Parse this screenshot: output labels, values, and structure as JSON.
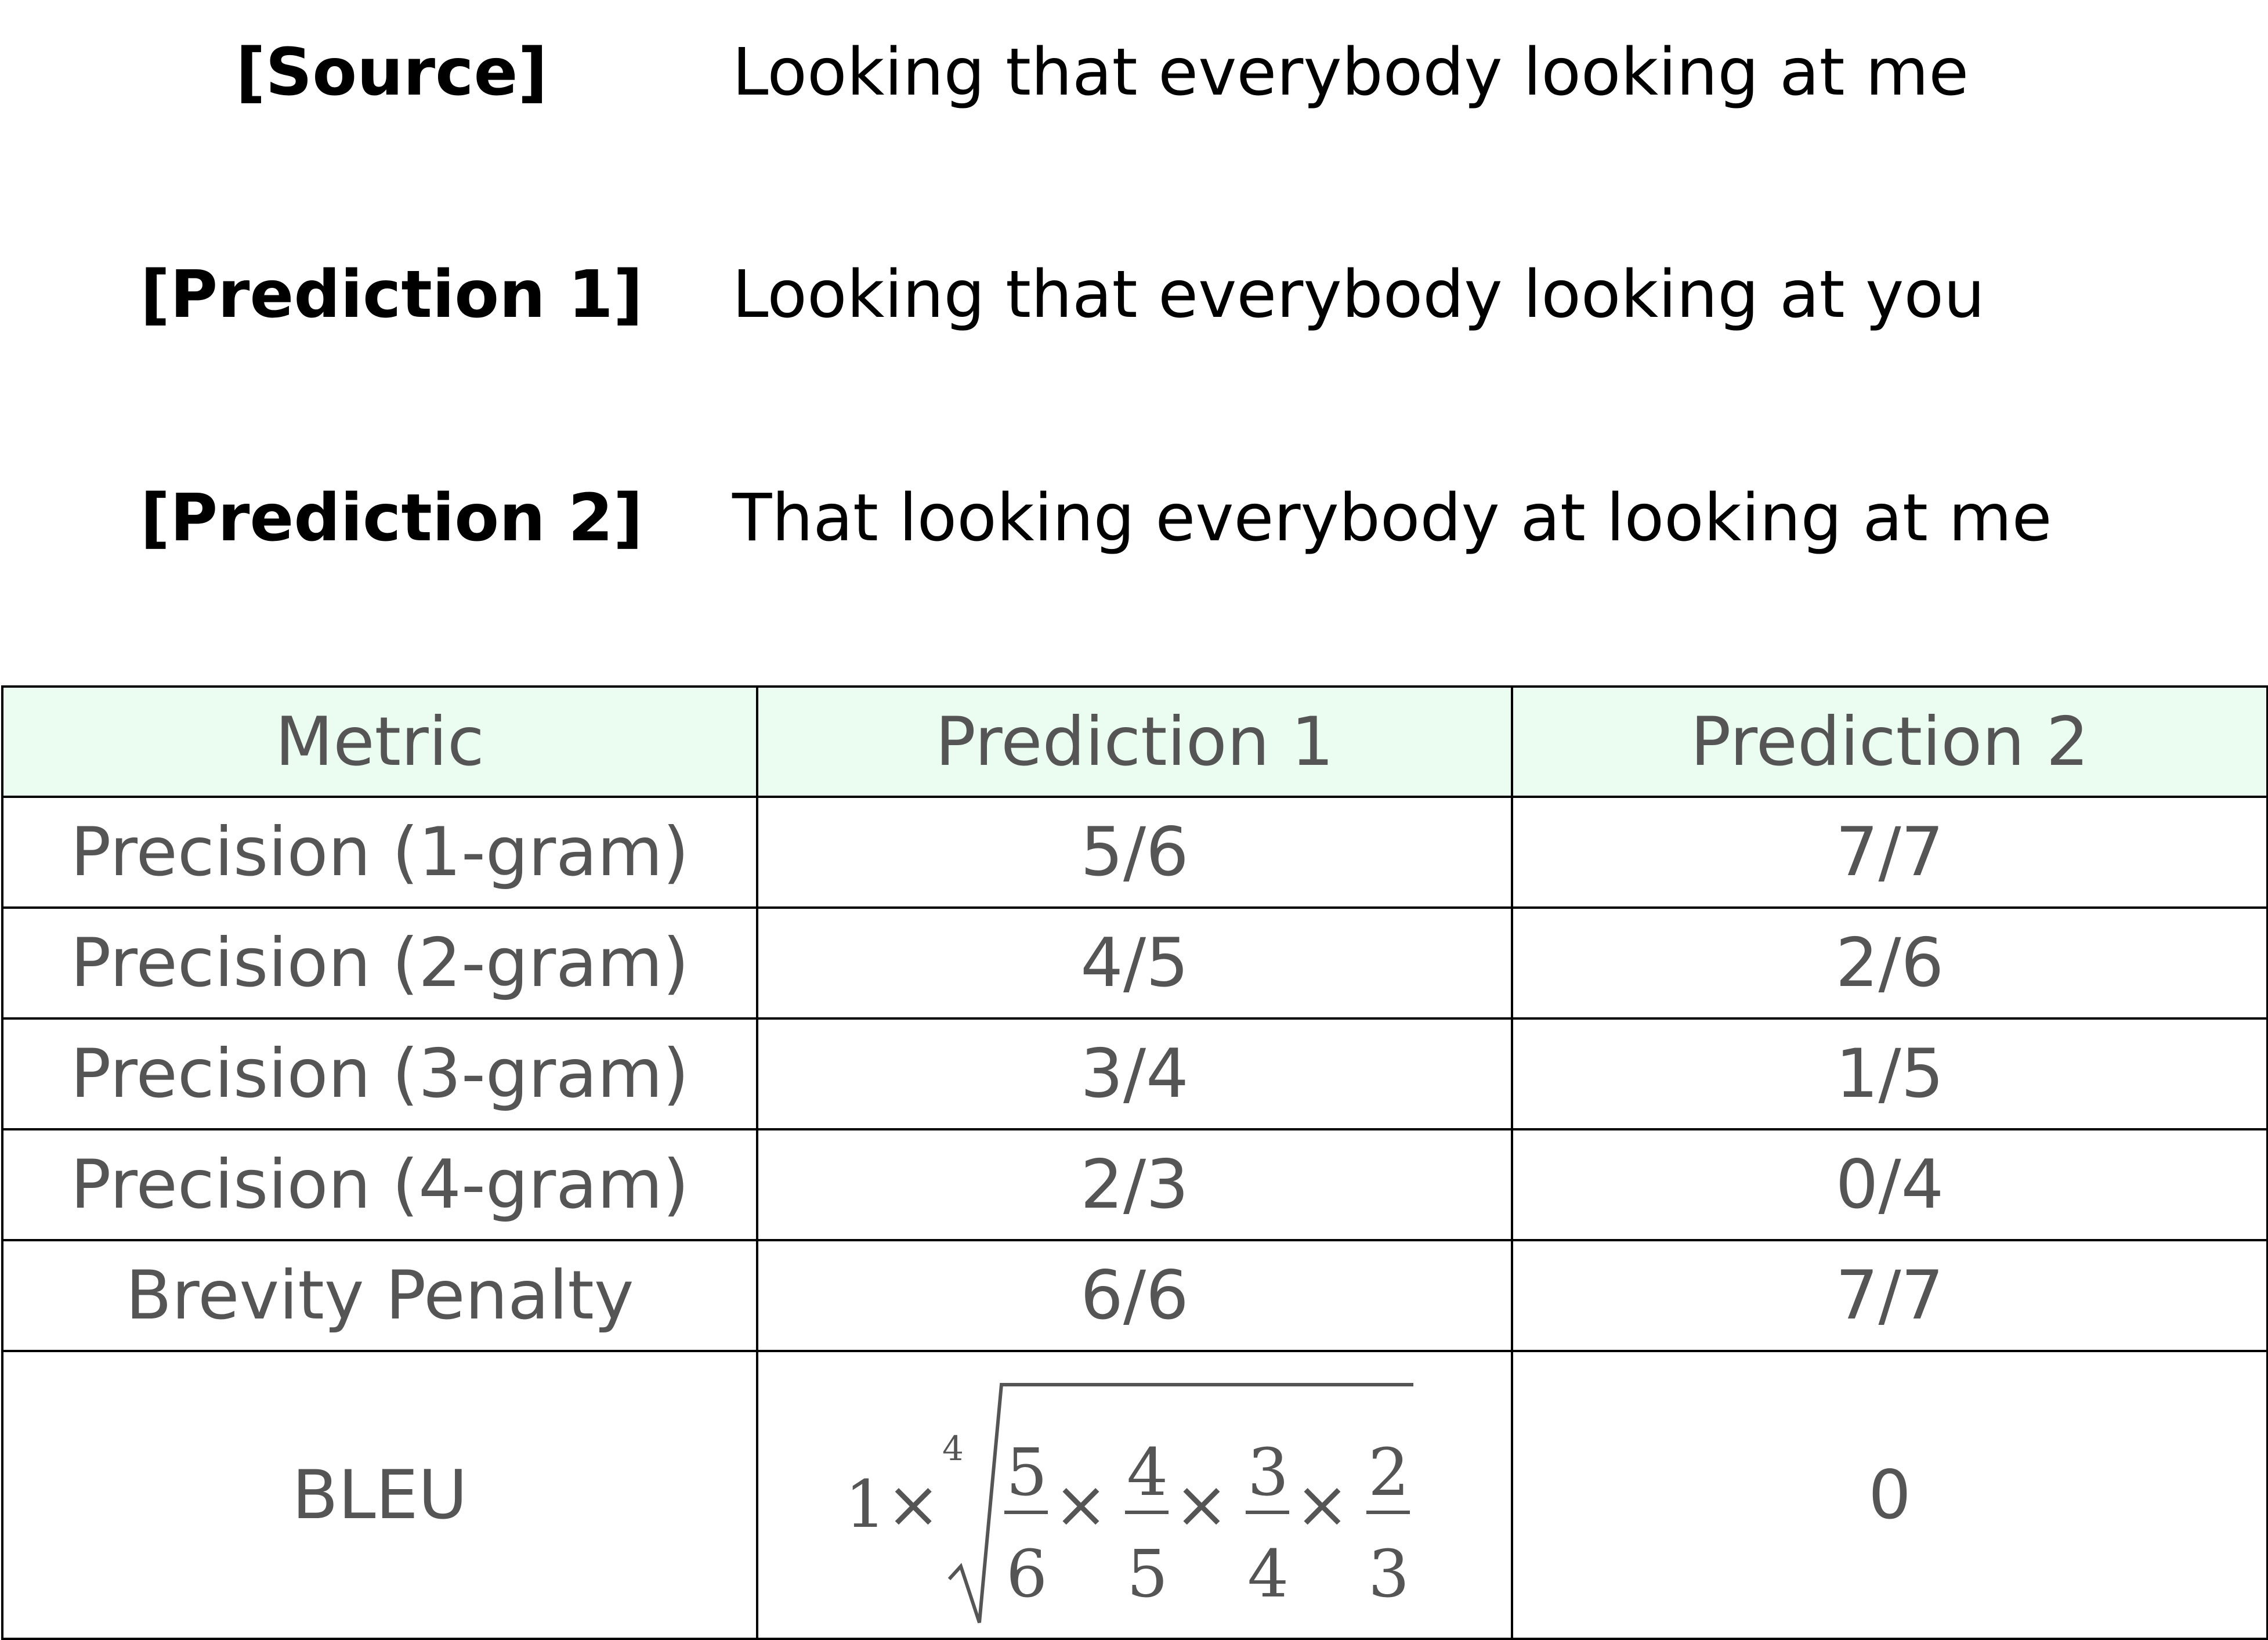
{
  "sentences": [
    {
      "label": "[Source]",
      "text": "Looking that everybody looking at me"
    },
    {
      "label": "[Prediction 1]",
      "text": "Looking that everybody looking at you"
    },
    {
      "label": "[Prediction 2]",
      "text": "That looking everybody at looking at me"
    }
  ],
  "table": {
    "headers": [
      "Metric",
      "Prediction 1",
      "Prediction 2"
    ],
    "rows": [
      [
        "Precision (1-gram)",
        "5/6",
        "7/7"
      ],
      [
        "Precision (2-gram)",
        "4/5",
        "2/6"
      ],
      [
        "Precision (3-gram)",
        "3/4",
        "1/5"
      ],
      [
        "Precision (4-gram)",
        "2/3",
        "0/4"
      ],
      [
        "Brevity Penalty",
        "6/6",
        "7/7"
      ]
    ],
    "bleu": {
      "label": "BLEU",
      "prediction2": "0",
      "formula": {
        "prefix": "1×",
        "root_index": "4",
        "times": "×",
        "fractions": [
          {
            "num": "5",
            "den": "6"
          },
          {
            "num": "4",
            "den": "5"
          },
          {
            "num": "3",
            "den": "4"
          },
          {
            "num": "2",
            "den": "3"
          }
        ]
      }
    }
  },
  "colors": {
    "header_bg": "#ebfcf1",
    "cell_text": "#555555",
    "border": "#000000"
  }
}
